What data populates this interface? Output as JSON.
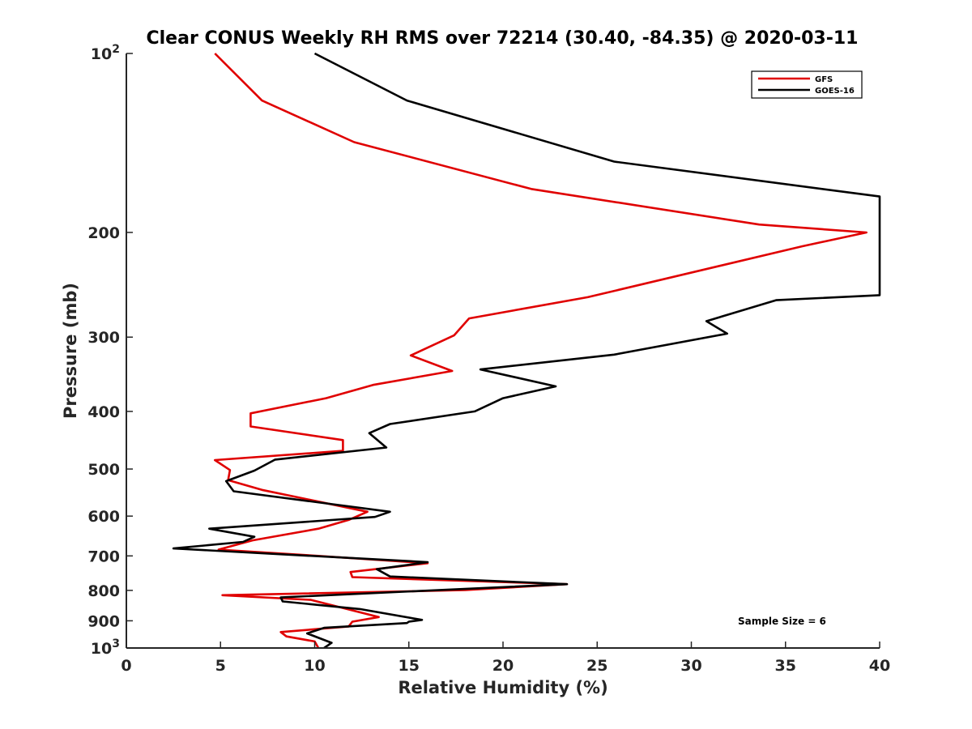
{
  "chart_data": {
    "type": "line",
    "title": "Clear CONUS Weekly RH RMS over 72214 (30.40, -84.35) @ 2020-03-11",
    "xlabel": "Relative Humidity (%)",
    "ylabel": "Pressure (mb)",
    "xlim": [
      0,
      40
    ],
    "ylim": [
      100,
      1000
    ],
    "yscale": "log",
    "y_reversed": true,
    "x_ticks": [
      "0",
      "5",
      "10",
      "15",
      "20",
      "25",
      "30",
      "35",
      "40"
    ],
    "y_ticks": [
      {
        "value": 100,
        "base": "10",
        "exp": "2"
      },
      {
        "value": 200,
        "label": "200"
      },
      {
        "value": 300,
        "label": "300"
      },
      {
        "value": 400,
        "label": "400"
      },
      {
        "value": 500,
        "label": "500"
      },
      {
        "value": 600,
        "label": "600"
      },
      {
        "value": 700,
        "label": "700"
      },
      {
        "value": 800,
        "label": "800"
      },
      {
        "value": 900,
        "label": "900"
      },
      {
        "value": 1000,
        "base": "10",
        "exp": "3"
      }
    ],
    "legend_position": "top-right",
    "annotation": "Sample Size = 6",
    "series": [
      {
        "name": "GFS",
        "color": "#e00000",
        "x": [
          4.7,
          7.2,
          12.1,
          21.5,
          33.6,
          39.3,
          35.9,
          24.5,
          18.2,
          17.4,
          15.1,
          17.3,
          13.1,
          10.6,
          6.6,
          6.6,
          11.5,
          11.5,
          4.7,
          5.5,
          5.4,
          7.2,
          12.8,
          11.8,
          10.2,
          6.7,
          4.9,
          10.2,
          16.0,
          11.9,
          12.0,
          23.4,
          18.0,
          5.1,
          9.8,
          13.4,
          12.0,
          11.8,
          8.2,
          8.5,
          10.0,
          10.2
        ],
        "y": [
          100,
          120,
          141,
          169,
          194,
          200,
          211,
          257,
          279,
          298,
          322,
          342,
          361,
          380,
          403,
          424,
          447,
          466,
          483,
          502,
          522,
          542,
          590,
          609,
          630,
          659,
          683,
          700,
          720,
          745,
          760,
          781,
          799,
          815,
          830,
          887,
          903,
          920,
          940,
          956,
          975,
          1000
        ]
      },
      {
        "name": "GOES-16",
        "color": "#000000",
        "x": [
          10.0,
          14.9,
          25.9,
          40.0,
          40.0,
          34.5,
          30.8,
          31.9,
          25.9,
          18.8,
          22.8,
          20.0,
          18.5,
          14.0,
          12.9,
          13.8,
          7.9,
          6.8,
          5.3,
          5.7,
          14.0,
          13.2,
          4.4,
          6.8,
          6.2,
          2.5,
          16.0,
          13.3,
          14.0,
          23.4,
          8.2,
          8.3,
          12.4,
          15.7,
          15.0,
          14.9,
          10.5,
          9.6,
          10.9,
          10.5
        ],
        "y": [
          100,
          120,
          152,
          174,
          255,
          260,
          282,
          296,
          321,
          340,
          363,
          380,
          400,
          420,
          435,
          460,
          482,
          503,
          524,
          545,
          590,
          602,
          630,
          650,
          663,
          680,
          717,
          737,
          758,
          781,
          822,
          835,
          860,
          897,
          903,
          908,
          925,
          945,
          980,
          1000
        ]
      }
    ]
  }
}
